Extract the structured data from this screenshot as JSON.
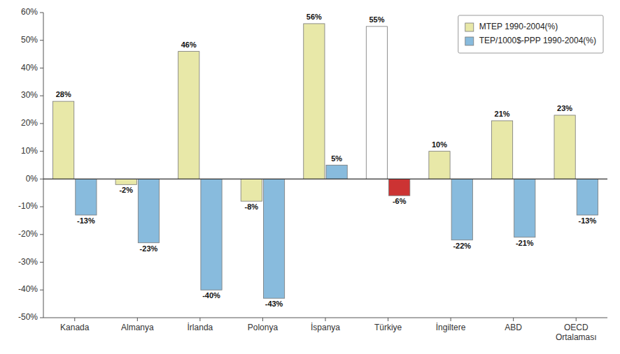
{
  "chart_data": {
    "type": "bar",
    "categories": [
      "Kanada",
      "Almanya",
      "İrlanda",
      "Polonya",
      "İspanya",
      "Türkiye",
      "İngiltere",
      "ABD",
      "OECD\nOrtalaması"
    ],
    "series": [
      {
        "name": "MTEP 1990-2004(%)",
        "color": "#e8e8a8",
        "colors": [
          "#e8e8a8",
          "#e8e8a8",
          "#e8e8a8",
          "#e8e8a8",
          "#e8e8a8",
          "#ffffff",
          "#e8e8a8",
          "#e8e8a8",
          "#e8e8a8"
        ],
        "values": [
          28,
          -2,
          46,
          -8,
          56,
          55,
          10,
          21,
          23
        ],
        "value_labels": [
          "28%",
          "-2%",
          "46%",
          "-8%",
          "56%",
          "55%",
          "10%",
          "21%",
          "23%"
        ]
      },
      {
        "name": "TEP/1000$-PPP 1990-2004(%)",
        "color": "#88bbdd",
        "colors": [
          "#88bbdd",
          "#88bbdd",
          "#88bbdd",
          "#88bbdd",
          "#88bbdd",
          "#cc3333",
          "#88bbdd",
          "#88bbdd",
          "#88bbdd"
        ],
        "values": [
          -13,
          -23,
          -40,
          -43,
          5,
          -6,
          -22,
          -21,
          -13
        ],
        "value_labels": [
          "-13%",
          "-23%",
          "-40%",
          "-43%",
          "5%",
          "-6%",
          "-22%",
          "-21%",
          "-13%"
        ]
      }
    ],
    "ylim": [
      -50,
      60
    ],
    "yticks": [
      {
        "value": -50,
        "label": "-50%"
      },
      {
        "value": -40,
        "label": "-40%"
      },
      {
        "value": -30,
        "label": "-30%"
      },
      {
        "value": -20,
        "label": "-20%"
      },
      {
        "value": -10,
        "label": "-10%"
      },
      {
        "value": 0,
        "label": "0%"
      },
      {
        "value": 10,
        "label": "10%"
      },
      {
        "value": 20,
        "label": "20%"
      },
      {
        "value": 30,
        "label": "30%"
      },
      {
        "value": 40,
        "label": "40%"
      },
      {
        "value": 50,
        "label": "50%"
      },
      {
        "value": 60,
        "label": "60%"
      }
    ],
    "grid": false,
    "legend": "upper-right",
    "data_labels": true
  }
}
